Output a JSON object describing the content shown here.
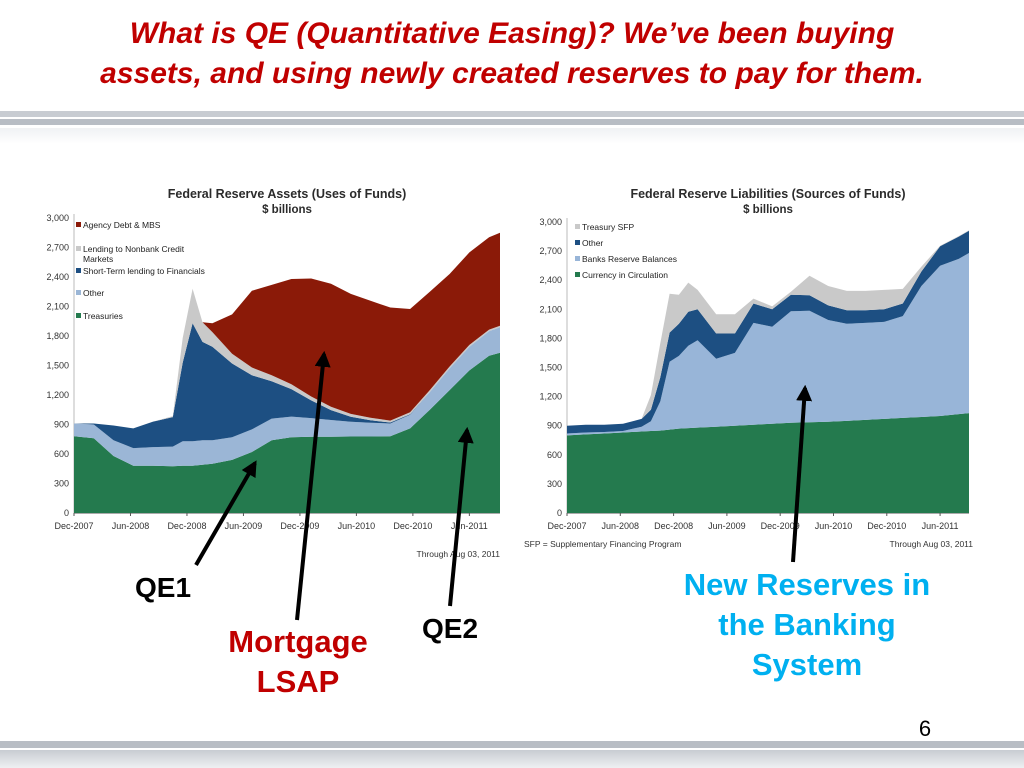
{
  "slide": {
    "title_line1": "What is QE (Quantitative Easing)?  We’ve been buying",
    "title_line2": "assets, and using newly created reserves to pay for them.",
    "page_number": "6"
  },
  "labels": {
    "qe1": "QE1",
    "lsap_line1": "Mortgage",
    "lsap_line2": "LSAP",
    "qe2": "QE2",
    "reserves_line1": "New Reserves in",
    "reserves_line2": "the Banking",
    "reserves_line3": "System"
  },
  "colors": {
    "title": "#c00000",
    "lsap_label": "#c00000",
    "reserves_label": "#00b0f0",
    "agency_mbs": "#8b1a08",
    "lending_nonbank": "#c9c9c9",
    "short_term_lending": "#1d4f82",
    "other_assets": "#9bb6d6",
    "treasuries": "#247a4e",
    "treasury_sfp": "#c9c9c9",
    "other_liab": "#1d4f82",
    "bank_reserves": "#98b5d8",
    "currency": "#247a4e"
  },
  "chart_data": [
    {
      "type": "area",
      "stacked": true,
      "title": "Federal Reserve Assets (Uses of Funds)",
      "subtitle": "$ billions",
      "x_tick_labels": [
        "Dec-2007",
        "Jun-2008",
        "Dec-2008",
        "Jun-2009",
        "Dec-2009",
        "Jun-2010",
        "Dec-2010",
        "Jun-2011"
      ],
      "y_tick_labels": [
        "0",
        "300",
        "600",
        "900",
        "1,200",
        "1,500",
        "1,800",
        "2,100",
        "2,400",
        "2,700",
        "3,000"
      ],
      "ylim": [
        0,
        3000
      ],
      "legend_position": "top-left",
      "footnote": "Through Aug 03, 2011",
      "x": [
        0,
        2,
        4,
        6,
        8,
        10,
        11,
        12,
        13,
        14,
        16,
        18,
        20,
        22,
        24,
        26,
        28,
        30,
        32,
        34,
        36,
        38,
        40,
        42,
        43.1
      ],
      "series": [
        {
          "name": "Treasuries",
          "values": [
            780,
            760,
            580,
            480,
            480,
            475,
            480,
            480,
            490,
            500,
            540,
            620,
            740,
            770,
            775,
            776,
            778,
            778,
            780,
            860,
            1050,
            1250,
            1450,
            1600,
            1630
          ]
        },
        {
          "name": "Other",
          "values": [
            130,
            140,
            160,
            180,
            190,
            200,
            250,
            250,
            250,
            240,
            230,
            230,
            220,
            210,
            190,
            170,
            150,
            140,
            130,
            140,
            180,
            220,
            240,
            250,
            260
          ]
        },
        {
          "name": "Short-Term lending to Financials",
          "values": [
            0,
            10,
            150,
            200,
            260,
            300,
            800,
            1200,
            1000,
            950,
            750,
            550,
            380,
            280,
            180,
            100,
            50,
            25,
            10,
            5,
            0,
            0,
            0,
            0,
            0
          ]
        },
        {
          "name": "Lending to Nonbank Credit Markets",
          "values": [
            0,
            0,
            0,
            0,
            0,
            10,
            250,
            350,
            200,
            150,
            100,
            80,
            60,
            50,
            40,
            35,
            30,
            25,
            20,
            20,
            20,
            20,
            20,
            15,
            15
          ]
        },
        {
          "name": "Agency Debt & MBS",
          "values": [
            0,
            0,
            0,
            0,
            0,
            0,
            0,
            0,
            0,
            90,
            400,
            780,
            920,
            1070,
            1200,
            1250,
            1220,
            1190,
            1150,
            1050,
            1000,
            940,
            940,
            940,
            945
          ]
        }
      ]
    },
    {
      "type": "area",
      "stacked": true,
      "title": "Federal Reserve Liabilities (Sources of Funds)",
      "subtitle": "$ billions",
      "x_tick_labels": [
        "Dec-2007",
        "Jun-2008",
        "Dec-2008",
        "Jun-2009",
        "Dec-2009",
        "Jun-2010",
        "Dec-2010",
        "Jun-2011"
      ],
      "y_tick_labels": [
        "0",
        "300",
        "600",
        "900",
        "1,200",
        "1,500",
        "1,800",
        "2,100",
        "2,400",
        "2,700",
        "3,000"
      ],
      "ylim": [
        0,
        3000
      ],
      "legend_position": "top-left",
      "footnote_left": "SFP = Supplementary Financing Program",
      "footnote_right": "Through Aug 03, 2011",
      "x": [
        0,
        2,
        4,
        6,
        8,
        9,
        10,
        11,
        12,
        13,
        14,
        16,
        18,
        20,
        22,
        24,
        26,
        28,
        30,
        32,
        34,
        36,
        38,
        40,
        42,
        43.1
      ],
      "series": [
        {
          "name": "Currency in Circulation",
          "values": [
            800,
            810,
            820,
            830,
            840,
            845,
            850,
            860,
            870,
            875,
            880,
            890,
            900,
            910,
            920,
            930,
            935,
            940,
            950,
            960,
            970,
            980,
            990,
            1000,
            1020,
            1030
          ]
        },
        {
          "name": "Banks Reserve Balances",
          "values": [
            20,
            20,
            15,
            15,
            50,
            100,
            300,
            700,
            750,
            850,
            900,
            700,
            750,
            1050,
            1000,
            1150,
            1150,
            1050,
            1000,
            1000,
            1000,
            1050,
            1350,
            1550,
            1600,
            1650
          ]
        },
        {
          "name": "Other",
          "values": [
            80,
            80,
            75,
            75,
            80,
            120,
            250,
            300,
            330,
            350,
            320,
            260,
            200,
            200,
            180,
            170,
            160,
            150,
            140,
            130,
            130,
            130,
            150,
            200,
            230,
            230
          ]
        },
        {
          "name": "Treasury SFP",
          "values": [
            0,
            0,
            0,
            0,
            0,
            150,
            350,
            400,
            300,
            300,
            200,
            200,
            200,
            50,
            30,
            30,
            200,
            200,
            200,
            200,
            200,
            150,
            50,
            5,
            5,
            5
          ]
        }
      ]
    }
  ]
}
